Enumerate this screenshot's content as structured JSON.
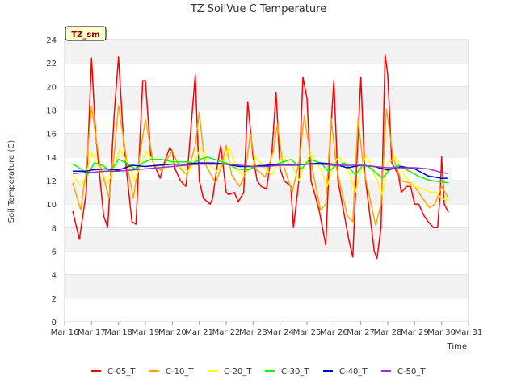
{
  "chart_data": {
    "type": "line",
    "title": "TZ SoilVue C Temperature",
    "xlabel": "Time",
    "ylabel": "Soil Temperature (C)",
    "annotation": "TZ_sm",
    "x_tick_labels": [
      "Mar 16",
      "Mar 17",
      "Mar 18",
      "Mar 19",
      "Mar 20",
      "Mar 21",
      "Mar 22",
      "Mar 23",
      "Mar 24",
      "Mar 25",
      "Mar 26",
      "Mar 27",
      "Mar 28",
      "Mar 29",
      "Mar 30",
      "Mar 31"
    ],
    "xlim": [
      16,
      31
    ],
    "ylim": [
      0,
      24
    ],
    "y_ticks": [
      0,
      2,
      4,
      6,
      8,
      10,
      12,
      14,
      16,
      18,
      20,
      22,
      24
    ],
    "grid": "horizontal alternating bands",
    "legend_placement": "bottom",
    "series": [
      {
        "name": "C-05_T",
        "color": "#ff0000",
        "x": [
          16.3,
          16.55,
          16.8,
          17.0,
          17.15,
          17.45,
          17.6,
          17.85,
          18.0,
          18.2,
          18.5,
          18.65,
          18.9,
          19.0,
          19.2,
          19.55,
          19.7,
          19.9,
          20.0,
          20.1,
          20.3,
          20.5,
          20.55,
          20.85,
          21.0,
          21.15,
          21.4,
          21.5,
          21.65,
          21.8,
          22.0,
          22.1,
          22.3,
          22.45,
          22.65,
          22.8,
          23.0,
          23.15,
          23.3,
          23.5,
          23.7,
          23.85,
          24.0,
          24.15,
          24.4,
          24.5,
          24.7,
          24.85,
          25.0,
          25.15,
          25.45,
          25.55,
          25.7,
          25.85,
          26.0,
          26.15,
          26.45,
          26.55,
          26.7,
          26.9,
          27.0,
          27.15,
          27.5,
          27.6,
          27.75,
          27.9,
          28.0,
          28.15,
          28.4,
          28.5,
          28.7,
          28.85,
          29.0,
          29.15,
          29.35,
          29.5,
          29.7,
          29.85,
          29.95,
          30.0,
          30.1,
          30.25
        ],
        "y": [
          9.4,
          7.0,
          11.0,
          22.4,
          16.0,
          9.0,
          8.0,
          18.0,
          22.5,
          15.0,
          8.5,
          8.3,
          20.5,
          20.5,
          14.0,
          12.2,
          13.5,
          14.8,
          14.5,
          13.0,
          12.0,
          11.5,
          12.5,
          21.0,
          12.0,
          10.5,
          10.0,
          10.5,
          13.0,
          15.0,
          11.0,
          10.8,
          11.0,
          10.2,
          11.0,
          18.7,
          14.0,
          12.0,
          11.5,
          11.3,
          14.5,
          19.5,
          13.0,
          12.0,
          11.5,
          8.0,
          12.0,
          20.8,
          19.0,
          12.0,
          9.5,
          8.3,
          6.5,
          15.0,
          20.5,
          12.0,
          8.3,
          7.0,
          5.5,
          16.0,
          20.8,
          12.5,
          6.0,
          5.4,
          8.0,
          22.7,
          21.0,
          13.5,
          12.5,
          11.0,
          11.5,
          11.5,
          10.0,
          10.0,
          9.0,
          8.5,
          8.0,
          8.0,
          11.0,
          14.0,
          10.0,
          9.3
        ]
      },
      {
        "name": "C-10_T",
        "color": "#ffa500",
        "x": [
          16.3,
          16.6,
          16.8,
          17.0,
          17.3,
          17.65,
          17.85,
          18.0,
          18.35,
          18.55,
          18.85,
          19.0,
          19.3,
          19.6,
          19.8,
          20.0,
          20.3,
          20.55,
          20.85,
          21.0,
          21.2,
          21.6,
          21.8,
          22.0,
          22.2,
          22.5,
          22.7,
          22.9,
          23.1,
          23.45,
          23.75,
          23.9,
          24.1,
          24.45,
          24.7,
          24.9,
          25.2,
          25.5,
          25.7,
          25.9,
          26.1,
          26.5,
          26.7,
          26.9,
          27.1,
          27.55,
          27.75,
          27.95,
          28.2,
          28.5,
          28.8,
          29.0,
          29.3,
          29.55,
          29.75,
          30.0,
          30.25
        ],
        "y": [
          11.8,
          9.5,
          13.0,
          18.3,
          13.5,
          10.5,
          14.5,
          18.4,
          13.0,
          10.5,
          15.0,
          17.2,
          13.5,
          12.8,
          13.8,
          14.5,
          13.0,
          12.5,
          15.0,
          17.8,
          13.5,
          11.8,
          13.0,
          15.0,
          12.5,
          11.5,
          12.5,
          16.0,
          13.0,
          12.3,
          14.5,
          16.8,
          13.5,
          11.0,
          13.5,
          17.5,
          13.0,
          9.5,
          10.0,
          17.3,
          13.0,
          9.0,
          8.5,
          17.3,
          13.0,
          8.2,
          10.0,
          18.1,
          14.0,
          12.0,
          11.8,
          11.5,
          10.5,
          9.7,
          10.0,
          11.5,
          10.5
        ]
      },
      {
        "name": "C-20_T",
        "color": "#ffff00",
        "x": [
          16.3,
          16.6,
          16.8,
          17.0,
          17.3,
          17.6,
          17.85,
          18.05,
          18.4,
          18.6,
          18.85,
          19.05,
          19.4,
          19.7,
          20.0,
          20.4,
          20.6,
          20.9,
          21.05,
          21.3,
          21.65,
          21.9,
          22.1,
          22.4,
          22.6,
          22.9,
          23.1,
          23.45,
          23.7,
          23.95,
          24.1,
          24.45,
          24.7,
          24.95,
          25.15,
          25.5,
          25.75,
          26.0,
          26.2,
          26.6,
          26.8,
          27.0,
          27.2,
          27.6,
          27.8,
          28.0,
          28.3,
          28.6,
          29.0,
          29.3,
          29.6,
          29.8,
          30.0,
          30.25
        ],
        "y": [
          12.5,
          11.5,
          12.5,
          14.4,
          13.0,
          11.8,
          13.0,
          14.7,
          13.2,
          12.0,
          13.5,
          14.5,
          13.2,
          13.0,
          13.5,
          13.0,
          12.8,
          14.0,
          14.8,
          13.5,
          12.8,
          13.5,
          14.8,
          13.0,
          12.5,
          13.0,
          14.0,
          13.0,
          12.5,
          13.5,
          14.0,
          13.2,
          12.0,
          13.5,
          14.3,
          13.0,
          11.5,
          13.5,
          14.0,
          12.5,
          11.0,
          13.0,
          14.2,
          12.0,
          10.8,
          13.5,
          14.0,
          12.5,
          11.5,
          11.3,
          11.0,
          11.0,
          10.5,
          10.3
        ]
      },
      {
        "name": "C-30_T",
        "color": "#00ff00",
        "x": [
          16.3,
          16.6,
          16.85,
          17.1,
          17.4,
          17.7,
          18.0,
          18.3,
          18.6,
          18.9,
          19.2,
          19.6,
          20.0,
          20.5,
          20.8,
          21.0,
          21.3,
          21.7,
          22.0,
          22.4,
          22.8,
          23.2,
          23.6,
          24.0,
          24.4,
          24.8,
          25.1,
          25.5,
          25.8,
          26.1,
          26.4,
          26.8,
          27.1,
          27.4,
          27.8,
          28.1,
          28.4,
          28.8,
          29.2,
          29.6,
          30.0,
          30.25
        ],
        "y": [
          13.4,
          13.0,
          12.5,
          13.5,
          13.3,
          12.8,
          13.8,
          13.5,
          13.0,
          13.5,
          13.8,
          13.8,
          13.6,
          13.6,
          13.5,
          13.8,
          14.0,
          13.7,
          13.5,
          13.0,
          12.9,
          13.3,
          13.2,
          13.5,
          13.8,
          13.0,
          13.8,
          13.5,
          12.8,
          13.3,
          13.5,
          12.5,
          13.4,
          13.0,
          12.2,
          13.0,
          13.3,
          12.8,
          12.3,
          12.0,
          11.9,
          11.8
        ]
      },
      {
        "name": "C-40_T",
        "color": "#0000cd",
        "x": [
          16.3,
          16.8,
          17.0,
          17.5,
          18.0,
          18.5,
          19.0,
          19.5,
          20.0,
          20.5,
          21.0,
          21.5,
          22.0,
          22.5,
          23.0,
          23.5,
          24.0,
          24.5,
          25.0,
          25.5,
          26.0,
          26.5,
          27.0,
          27.5,
          28.0,
          28.5,
          29.0,
          29.5,
          30.0,
          30.25
        ],
        "y": [
          12.8,
          12.8,
          12.9,
          13.0,
          12.9,
          13.3,
          13.2,
          13.3,
          13.4,
          13.4,
          13.5,
          13.5,
          13.4,
          13.2,
          13.2,
          13.3,
          13.4,
          13.3,
          13.4,
          13.5,
          13.4,
          13.1,
          13.3,
          13.2,
          12.9,
          13.2,
          13.0,
          12.4,
          12.2,
          12.2
        ]
      },
      {
        "name": "C-50_T",
        "color": "#9932cc",
        "x": [
          16.3,
          16.8,
          17.0,
          17.5,
          18.0,
          18.5,
          19.0,
          19.5,
          20.0,
          20.5,
          21.0,
          21.5,
          22.0,
          22.5,
          23.0,
          23.5,
          24.0,
          24.5,
          25.0,
          25.5,
          26.0,
          26.5,
          27.0,
          27.5,
          28.0,
          28.5,
          29.0,
          29.5,
          30.0,
          30.25
        ],
        "y": [
          12.6,
          12.7,
          12.7,
          12.8,
          12.8,
          12.9,
          13.0,
          13.1,
          13.2,
          13.3,
          13.4,
          13.4,
          13.4,
          13.3,
          13.2,
          13.2,
          13.3,
          13.3,
          13.4,
          13.4,
          13.3,
          13.3,
          13.3,
          13.2,
          13.1,
          13.1,
          13.1,
          13.0,
          12.7,
          12.6
        ]
      }
    ]
  }
}
